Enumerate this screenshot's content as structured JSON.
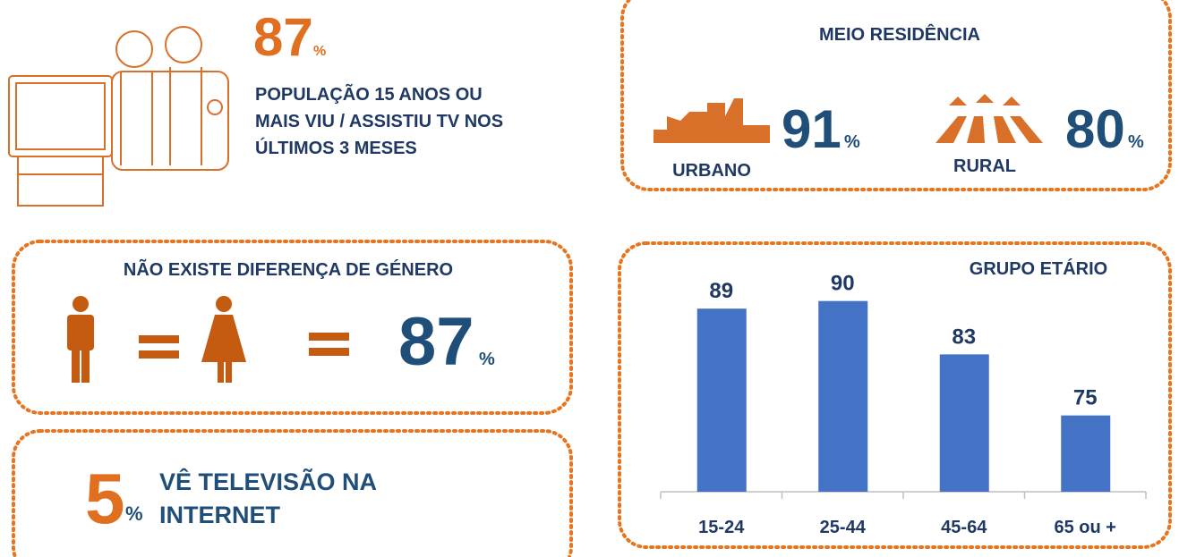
{
  "summary": {
    "value": 87,
    "unit": "%",
    "lines": [
      "POPULAÇÃO 15 ANOS OU",
      "MAIS VIU / ASSISTIU TV NOS",
      "ÚLTIMOS 3 MESES"
    ]
  },
  "residence": {
    "title": "MEIO RESIDÊNCIA",
    "items": [
      {
        "label": "URBANO",
        "value": 91,
        "unit": "%"
      },
      {
        "label": "RURAL",
        "value": 80,
        "unit": "%"
      }
    ]
  },
  "gender": {
    "title": "NÃO EXISTE DIFERENÇA DE GÉNERO",
    "value": 87,
    "unit": "%"
  },
  "internet": {
    "value": 5,
    "unit": "%",
    "lines": [
      "VÊ TELEVISÃO NA",
      "INTERNET"
    ]
  },
  "chart_data": {
    "type": "bar",
    "title": "GRUPO ETÁRIO",
    "categories": [
      "15-24",
      "25-44",
      "45-64",
      "65 ou +"
    ],
    "values": [
      89,
      90,
      83,
      75
    ],
    "color": "#4472c4",
    "ylim": [
      65,
      95
    ]
  }
}
